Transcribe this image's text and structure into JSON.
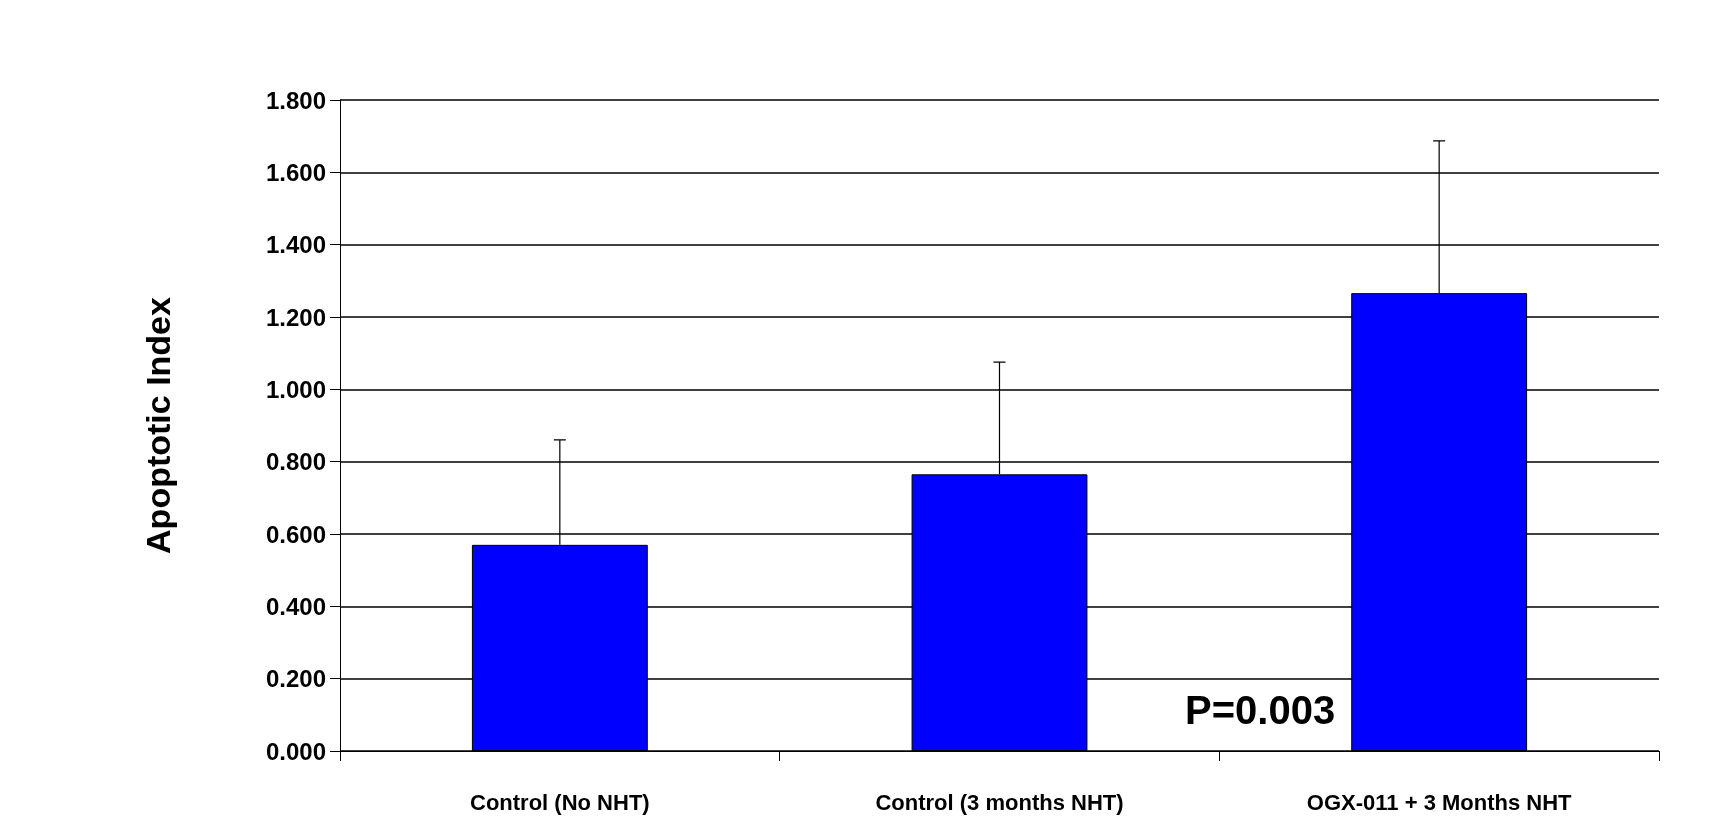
{
  "chart_data": {
    "type": "bar",
    "ylabel": "Apoptotic Index",
    "categories": [
      "Control (No NHT)",
      "Control (3 months NHT)",
      "OGX-011 + 3 Months NHT"
    ],
    "values": [
      0.57,
      0.765,
      1.266
    ],
    "errors": [
      [
        0.57,
        0.86
      ],
      [
        0.765,
        1.075
      ],
      [
        1.266,
        1.687
      ]
    ],
    "color": "#0000ff",
    "ylim": [
      0,
      1.8
    ],
    "yticks": [
      {
        "value": 0,
        "label": "0.000"
      },
      {
        "value": 0.2,
        "label": "0.200"
      },
      {
        "value": 0.4,
        "label": "0.400"
      },
      {
        "value": 0.6,
        "label": "0.600"
      },
      {
        "value": 0.8,
        "label": "0.800"
      },
      {
        "value": 1,
        "label": "1.000"
      },
      {
        "value": 1.2,
        "label": "1.200"
      },
      {
        "value": 1.4,
        "label": "1.400"
      },
      {
        "value": 1.6,
        "label": "1.600"
      },
      {
        "value": 1.8,
        "label": "1.800"
      }
    ],
    "grid": "y",
    "annotations": [
      "P=0.003"
    ]
  }
}
